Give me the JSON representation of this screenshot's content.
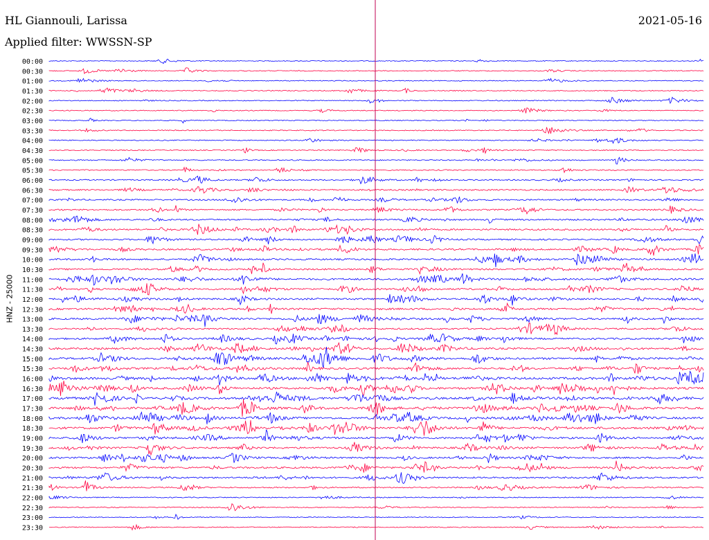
{
  "header": {
    "station": "HL Giannouli, Larissa",
    "date": "2021-05-16",
    "filter": "Applied filter: WWSSN-SP"
  },
  "chart_data": {
    "type": "line",
    "title": "HL Giannouli, Larissa",
    "ylabel": "HNZ - 25000",
    "legend": "none",
    "grid": false,
    "marker_line": "current time",
    "colors": {
      "even": "#0000ff",
      "odd": "#ff0040",
      "marker": "#c00050"
    },
    "rows": [
      {
        "label": "00:00",
        "activity": 0.05
      },
      {
        "label": "00:30",
        "activity": 0.1
      },
      {
        "label": "01:00",
        "activity": 0.08
      },
      {
        "label": "01:30",
        "activity": 0.12
      },
      {
        "label": "02:00",
        "activity": 0.12
      },
      {
        "label": "02:30",
        "activity": 0.1
      },
      {
        "label": "03:00",
        "activity": 0.08
      },
      {
        "label": "03:30",
        "activity": 0.15
      },
      {
        "label": "04:00",
        "activity": 0.12
      },
      {
        "label": "04:30",
        "activity": 0.15
      },
      {
        "label": "05:00",
        "activity": 0.2
      },
      {
        "label": "05:30",
        "activity": 0.2
      },
      {
        "label": "06:00",
        "activity": 0.3
      },
      {
        "label": "06:30",
        "activity": 0.35
      },
      {
        "label": "07:00",
        "activity": 0.35
      },
      {
        "label": "07:30",
        "activity": 0.4
      },
      {
        "label": "08:00",
        "activity": 0.45
      },
      {
        "label": "08:30",
        "activity": 0.5
      },
      {
        "label": "09:00",
        "activity": 0.45
      },
      {
        "label": "09:30",
        "activity": 0.55
      },
      {
        "label": "10:00",
        "activity": 0.55
      },
      {
        "label": "10:30",
        "activity": 0.55
      },
      {
        "label": "11:00",
        "activity": 0.6
      },
      {
        "label": "11:30",
        "activity": 0.6
      },
      {
        "label": "12:00",
        "activity": 0.6
      },
      {
        "label": "12:30",
        "activity": 0.65
      },
      {
        "label": "13:00",
        "activity": 0.65
      },
      {
        "label": "13:30",
        "activity": 0.5
      },
      {
        "label": "14:00",
        "activity": 0.6
      },
      {
        "label": "14:30",
        "activity": 0.65
      },
      {
        "label": "15:00",
        "activity": 0.75
      },
      {
        "label": "15:30",
        "activity": 0.7
      },
      {
        "label": "16:00",
        "activity": 0.85
      },
      {
        "label": "16:30",
        "activity": 0.8
      },
      {
        "label": "17:00",
        "activity": 0.8
      },
      {
        "label": "17:30",
        "activity": 0.8
      },
      {
        "label": "18:00",
        "activity": 0.75
      },
      {
        "label": "18:30",
        "activity": 0.8
      },
      {
        "label": "19:00",
        "activity": 0.65
      },
      {
        "label": "19:30",
        "activity": 0.6
      },
      {
        "label": "20:00",
        "activity": 0.55
      },
      {
        "label": "20:30",
        "activity": 0.6
      },
      {
        "label": "21:00",
        "activity": 0.5
      },
      {
        "label": "21:30",
        "activity": 0.3
      },
      {
        "label": "22:00",
        "activity": 0.15
      },
      {
        "label": "22:30",
        "activity": 0.12
      },
      {
        "label": "23:00",
        "activity": 0.1
      },
      {
        "label": "23:30",
        "activity": 0.1
      }
    ]
  }
}
